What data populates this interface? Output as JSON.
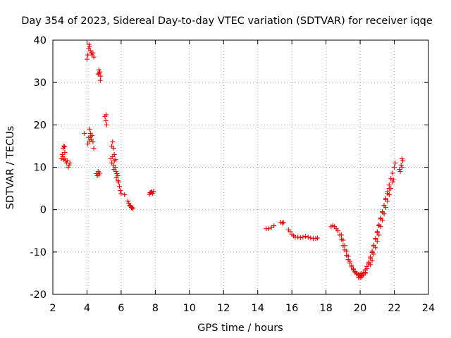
{
  "chart_data": {
    "type": "scatter",
    "title": "Day 354 of 2023, Sidereal Day-to-day VTEC variation (SDTVAR) for receiver iqqe",
    "xlabel": "GPS time / hours",
    "ylabel": "SDTVAR / TECUs",
    "xlim": [
      2,
      24
    ],
    "ylim": [
      -20,
      40
    ],
    "xticks": [
      "2",
      "4",
      "6",
      "8",
      "10",
      "12",
      "14",
      "16",
      "18",
      "20",
      "22",
      "24"
    ],
    "yticks": [
      "-20",
      "-10",
      "0",
      "10",
      "20",
      "30",
      "40"
    ],
    "grid": true,
    "marker": "plus",
    "color": "#ee0000",
    "series": [
      {
        "name": "SDTVAR",
        "points": [
          [
            2.5,
            12
          ],
          [
            2.55,
            13
          ],
          [
            2.6,
            14.5
          ],
          [
            2.65,
            15
          ],
          [
            2.7,
            13.5
          ],
          [
            2.7,
            12
          ],
          [
            2.75,
            11.5
          ],
          [
            2.8,
            11
          ],
          [
            2.85,
            11.5
          ],
          [
            2.9,
            10
          ],
          [
            2.95,
            10.5
          ],
          [
            3.0,
            11
          ],
          [
            2.58,
            12.5
          ],
          [
            2.62,
            11.8
          ],
          [
            2.68,
            14.8
          ],
          [
            3.85,
            18
          ],
          [
            4.0,
            35.5
          ],
          [
            4.05,
            36.5
          ],
          [
            4.1,
            38
          ],
          [
            4.12,
            39
          ],
          [
            4.15,
            38.5
          ],
          [
            4.2,
            37.5
          ],
          [
            4.25,
            37
          ],
          [
            4.3,
            36.5
          ],
          [
            4.35,
            37
          ],
          [
            4.4,
            36
          ],
          [
            4.05,
            15.5
          ],
          [
            4.1,
            17
          ],
          [
            4.15,
            19
          ],
          [
            4.2,
            18
          ],
          [
            4.25,
            16.5
          ],
          [
            4.3,
            17.5
          ],
          [
            4.35,
            16
          ],
          [
            4.4,
            14.5
          ],
          [
            4.15,
            16.2
          ],
          [
            4.22,
            17.2
          ],
          [
            4.55,
            8.5
          ],
          [
            4.6,
            8
          ],
          [
            4.65,
            9
          ],
          [
            4.7,
            8.2
          ],
          [
            4.75,
            8.6
          ],
          [
            4.65,
            32
          ],
          [
            4.7,
            33
          ],
          [
            4.75,
            32.5
          ],
          [
            4.8,
            31.5
          ],
          [
            4.78,
            30.5
          ],
          [
            4.72,
            32.2
          ],
          [
            5.05,
            22
          ],
          [
            5.1,
            21
          ],
          [
            5.15,
            20
          ],
          [
            5.12,
            22.4
          ],
          [
            5.4,
            12
          ],
          [
            5.45,
            15
          ],
          [
            5.5,
            16
          ],
          [
            5.55,
            14.5
          ],
          [
            5.6,
            13
          ],
          [
            5.45,
            11
          ],
          [
            5.55,
            10.5
          ],
          [
            5.6,
            11.5
          ],
          [
            5.65,
            10
          ],
          [
            5.7,
            9
          ],
          [
            5.75,
            8.5
          ],
          [
            5.8,
            8
          ],
          [
            5.85,
            6.5
          ],
          [
            5.9,
            5.5
          ],
          [
            5.95,
            4.5
          ],
          [
            6.0,
            3.8
          ],
          [
            5.5,
            12.5
          ],
          [
            5.58,
            9.5
          ],
          [
            5.68,
            11.8
          ],
          [
            5.72,
            7.5
          ],
          [
            5.82,
            6.8
          ],
          [
            6.2,
            3.5
          ],
          [
            6.4,
            2
          ],
          [
            6.45,
            1.5
          ],
          [
            6.5,
            1
          ],
          [
            6.55,
            0.8
          ],
          [
            6.6,
            0.5
          ],
          [
            6.65,
            0.3
          ],
          [
            6.7,
            0.4
          ],
          [
            7.65,
            3.6
          ],
          [
            7.7,
            4
          ],
          [
            7.75,
            4.1
          ],
          [
            7.8,
            4.2
          ],
          [
            7.85,
            3.8
          ],
          [
            7.9,
            4.3
          ],
          [
            14.5,
            -4.5
          ],
          [
            14.65,
            -4.5
          ],
          [
            14.8,
            -4.2
          ],
          [
            14.95,
            -3.8
          ],
          [
            15.35,
            -3
          ],
          [
            15.45,
            -3.2
          ],
          [
            15.5,
            -3
          ],
          [
            15.8,
            -4.8
          ],
          [
            15.9,
            -5.2
          ],
          [
            16.0,
            -5.8
          ],
          [
            16.1,
            -6.2
          ],
          [
            16.2,
            -6.5
          ],
          [
            16.35,
            -6.5
          ],
          [
            16.5,
            -6.6
          ],
          [
            16.65,
            -6.5
          ],
          [
            16.8,
            -6.3
          ],
          [
            16.95,
            -6.5
          ],
          [
            17.1,
            -6.7
          ],
          [
            17.25,
            -6.8
          ],
          [
            17.4,
            -6.8
          ],
          [
            17.5,
            -6.7
          ],
          [
            18.3,
            -4
          ],
          [
            18.4,
            -3.8
          ],
          [
            18.5,
            -4
          ],
          [
            18.6,
            -4.5
          ],
          [
            18.7,
            -5
          ],
          [
            18.8,
            -6
          ],
          [
            18.9,
            -7
          ],
          [
            19.0,
            -8.5
          ],
          [
            19.1,
            -9.5
          ],
          [
            19.2,
            -10.8
          ],
          [
            19.3,
            -11.8
          ],
          [
            19.4,
            -12.6
          ],
          [
            19.5,
            -13.5
          ],
          [
            19.6,
            -14.2
          ],
          [
            19.7,
            -14.8
          ],
          [
            19.8,
            -15.2
          ],
          [
            19.9,
            -15.5
          ],
          [
            20.0,
            -15.7
          ],
          [
            20.1,
            -15.6
          ],
          [
            20.2,
            -15.4
          ],
          [
            20.3,
            -15
          ],
          [
            18.9,
            -6
          ],
          [
            19.0,
            -7.2
          ],
          [
            19.1,
            -8.5
          ],
          [
            19.2,
            -9.8
          ],
          [
            19.3,
            -11
          ],
          [
            19.4,
            -12.2
          ],
          [
            19.5,
            -13.2
          ],
          [
            19.6,
            -14
          ],
          [
            19.7,
            -14.6
          ],
          [
            19.8,
            -15
          ],
          [
            19.9,
            -15.3
          ],
          [
            20.0,
            -15.3
          ],
          [
            20.1,
            -15.1
          ],
          [
            20.2,
            -14.8
          ],
          [
            20.3,
            -14.2
          ],
          [
            20.4,
            -13.4
          ],
          [
            20.5,
            -12.4
          ],
          [
            20.6,
            -11.2
          ],
          [
            20.7,
            -9.8
          ],
          [
            20.8,
            -8.4
          ],
          [
            20.9,
            -6.8
          ],
          [
            21.0,
            -5.2
          ],
          [
            21.1,
            -3.6
          ],
          [
            21.2,
            -2
          ],
          [
            21.3,
            -0.5
          ],
          [
            21.4,
            1
          ],
          [
            21.5,
            2.4
          ],
          [
            21.6,
            3.8
          ],
          [
            21.7,
            5
          ],
          [
            19.9,
            -16
          ],
          [
            20.0,
            -16.1
          ],
          [
            20.1,
            -15.9
          ],
          [
            20.2,
            -15.4
          ],
          [
            20.3,
            -14.8
          ],
          [
            20.4,
            -13.9
          ],
          [
            20.5,
            -12.8
          ],
          [
            20.6,
            -11.5
          ],
          [
            20.7,
            -10.1
          ],
          [
            20.8,
            -8.6
          ],
          [
            20.9,
            -7
          ],
          [
            21.0,
            -5.4
          ],
          [
            21.1,
            -3.8
          ],
          [
            21.2,
            -2.2
          ],
          [
            21.3,
            -0.6
          ],
          [
            21.4,
            1
          ],
          [
            21.5,
            2.6
          ],
          [
            21.6,
            4.2
          ],
          [
            21.7,
            5.8
          ],
          [
            21.8,
            7.3
          ],
          [
            21.9,
            8.6
          ],
          [
            22.0,
            10
          ],
          [
            22.05,
            11
          ],
          [
            20.6,
            -13
          ],
          [
            20.7,
            -12
          ],
          [
            20.8,
            -10.5
          ],
          [
            20.9,
            -9
          ],
          [
            21.0,
            -7.5
          ],
          [
            21.1,
            -6
          ],
          [
            21.2,
            -4
          ],
          [
            21.3,
            -2.5
          ],
          [
            21.4,
            -1
          ],
          [
            21.5,
            0.5
          ],
          [
            21.6,
            2
          ],
          [
            21.7,
            3.5
          ],
          [
            21.8,
            5
          ],
          [
            21.9,
            6.5
          ],
          [
            21.95,
            7
          ],
          [
            22.3,
            9.5
          ],
          [
            22.35,
            9
          ],
          [
            22.4,
            10.5
          ],
          [
            22.45,
            10
          ],
          [
            22.5,
            11.5
          ],
          [
            22.45,
            12
          ]
        ]
      }
    ]
  }
}
